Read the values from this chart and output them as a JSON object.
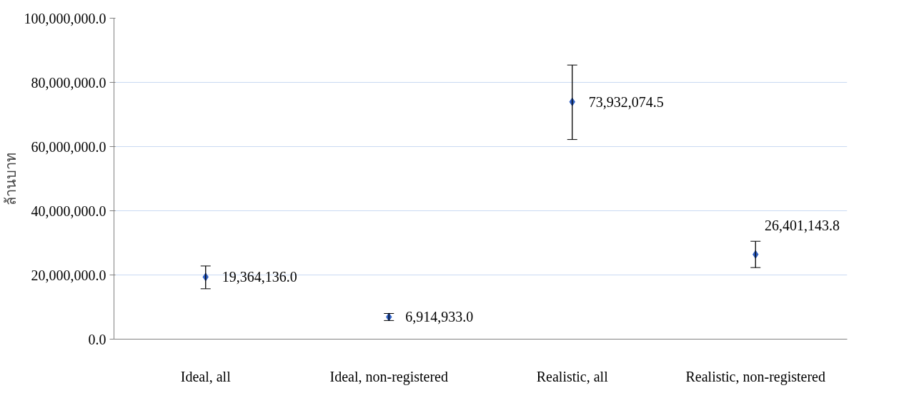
{
  "chart_data": {
    "type": "scatter",
    "ylabel": "ล้านบาท",
    "categories": [
      "Ideal, all",
      "Ideal, non-registered",
      "Realistic, all",
      "Realistic, non-registered"
    ],
    "series": [
      {
        "color": "#2e5fc4",
        "values": [
          19364136.0,
          6914933.0,
          73932074.5,
          26401143.8
        ],
        "errors": [
          [
            15700000,
            22800000
          ],
          [
            5800000,
            8000000
          ],
          [
            62200000,
            85400000
          ],
          [
            22300000,
            30500000
          ]
        ],
        "value_labels": [
          "19,364,136.0",
          "6,914,933.0",
          "73,932,074.5",
          "26,401,143.8"
        ]
      }
    ],
    "ylim": [
      0,
      100000000
    ],
    "yticks": [
      {
        "value": 0,
        "label": "0.0"
      },
      {
        "value": 20000000,
        "label": "20,000,000.0"
      },
      {
        "value": 40000000,
        "label": "40,000,000.0"
      },
      {
        "value": 60000000,
        "label": "60,000,000.0"
      },
      {
        "value": 80000000,
        "label": "80,000,000.0"
      },
      {
        "value": 100000000,
        "label": "100,000,000.0"
      }
    ],
    "grid": "y",
    "marker": "diamond"
  }
}
